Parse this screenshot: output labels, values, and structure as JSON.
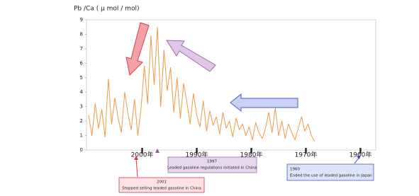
{
  "chart_data": {
    "type": "line",
    "ylabel": "Pb /Ca ( μ mol / mol)",
    "x": [
      2009.8,
      2009.2,
      2008.6,
      2008.0,
      2007.4,
      2006.8,
      2006.2,
      2005.6,
      2005.0,
      2004.4,
      2003.8,
      2003.2,
      2002.6,
      2002.0,
      2001.4,
      2000.8,
      2000.2,
      1999.6,
      1999.0,
      1998.4,
      1997.8,
      1997.2,
      1996.6,
      1996.0,
      1995.4,
      1994.8,
      1994.2,
      1993.6,
      1993.0,
      1992.4,
      1991.8,
      1991.2,
      1990.6,
      1990.0,
      1989.4,
      1988.8,
      1988.2,
      1987.6,
      1987.0,
      1986.4,
      1985.8,
      1985.2,
      1984.6,
      1984.0,
      1983.4,
      1982.8,
      1982.2,
      1981.6,
      1981.0,
      1980.4,
      1979.8,
      1979.2,
      1978.6,
      1978.0,
      1977.4,
      1976.8,
      1976.2,
      1975.6,
      1975.0,
      1974.4,
      1973.8,
      1973.2,
      1972.6,
      1972.0,
      1971.4,
      1970.8,
      1970.2,
      1969.6,
      1969.0,
      1968.4
    ],
    "series": [
      {
        "color": "#ef9a45",
        "values": [
          2.4,
          1.0,
          3.2,
          1.5,
          2.8,
          0.9,
          4.9,
          1.8,
          3.6,
          2.2,
          1.2,
          4.0,
          2.5,
          1.4,
          3.5,
          1.0,
          2.9,
          5.8,
          3.2,
          7.9,
          4.5,
          8.5,
          3.0,
          6.9,
          4.1,
          5.7,
          2.6,
          5.0,
          2.2,
          4.6,
          3.3,
          1.8,
          3.9,
          2.4,
          1.6,
          3.4,
          1.3,
          2.7,
          1.7,
          2.3,
          1.1,
          2.6,
          1.5,
          2.0,
          0.9,
          2.2,
          1.4,
          1.8,
          1.0,
          1.6,
          0.7,
          1.9,
          1.2,
          0.8,
          1.5,
          2.6,
          1.2,
          2.9,
          1.0,
          2.0,
          0.8,
          1.8,
          1.2,
          0.7,
          1.5,
          2.3,
          1.3,
          1.8,
          1.0,
          0.6
        ]
      }
    ],
    "xlim": [
      2010.2,
      1957.2
    ],
    "xticks": [
      {
        "value": 2000,
        "label": "2000年"
      },
      {
        "value": 1990,
        "label": "1990年"
      },
      {
        "value": 1980,
        "label": "1980年"
      },
      {
        "value": 1970,
        "label": "1970年"
      },
      {
        "value": 1960,
        "label": "1960年"
      }
    ],
    "ylim": [
      0,
      9
    ],
    "yticks": [
      0,
      1,
      2,
      3,
      4,
      5,
      6,
      7,
      8,
      9
    ],
    "annotations": [
      {
        "year": "2001",
        "text": "Stopped selling leaded gasoline in China"
      },
      {
        "year": "1997",
        "text": "Leaded gasoline regulations initiated in China"
      },
      {
        "year": "1960",
        "text": "Ended the use of leaded gasoline in Japan"
      }
    ]
  }
}
